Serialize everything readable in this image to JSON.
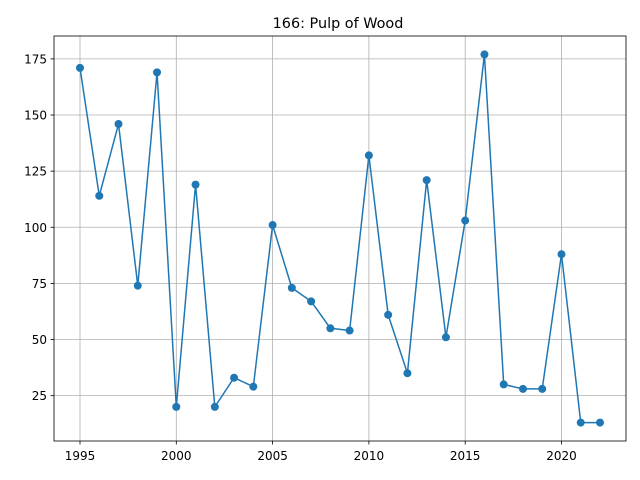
{
  "chart_data": {
    "type": "line",
    "title": "166: Pulp of Wood",
    "xlabel": "",
    "ylabel": "",
    "xlim": [
      1993.65,
      2023.35
    ],
    "ylim": [
      4.8,
      185.2
    ],
    "grid": true,
    "x_ticks": [
      1995,
      2000,
      2005,
      2010,
      2015,
      2020
    ],
    "y_ticks": [
      25,
      50,
      75,
      100,
      125,
      150,
      175
    ],
    "series": [
      {
        "color": "#1f77b4",
        "marker": "circle",
        "x": [
          1995,
          1996,
          1997,
          1998,
          1999,
          2000,
          2001,
          2002,
          2003,
          2004,
          2005,
          2006,
          2007,
          2008,
          2009,
          2010,
          2011,
          2012,
          2013,
          2014,
          2015,
          2016,
          2017,
          2018,
          2019,
          2020,
          2021,
          2022
        ],
        "y": [
          171,
          114,
          146,
          74,
          169,
          20,
          119,
          20,
          33,
          29,
          101,
          73,
          67,
          55,
          54,
          132,
          61,
          35,
          121,
          51,
          103,
          177,
          30,
          28,
          28,
          88,
          13,
          13
        ]
      }
    ]
  }
}
